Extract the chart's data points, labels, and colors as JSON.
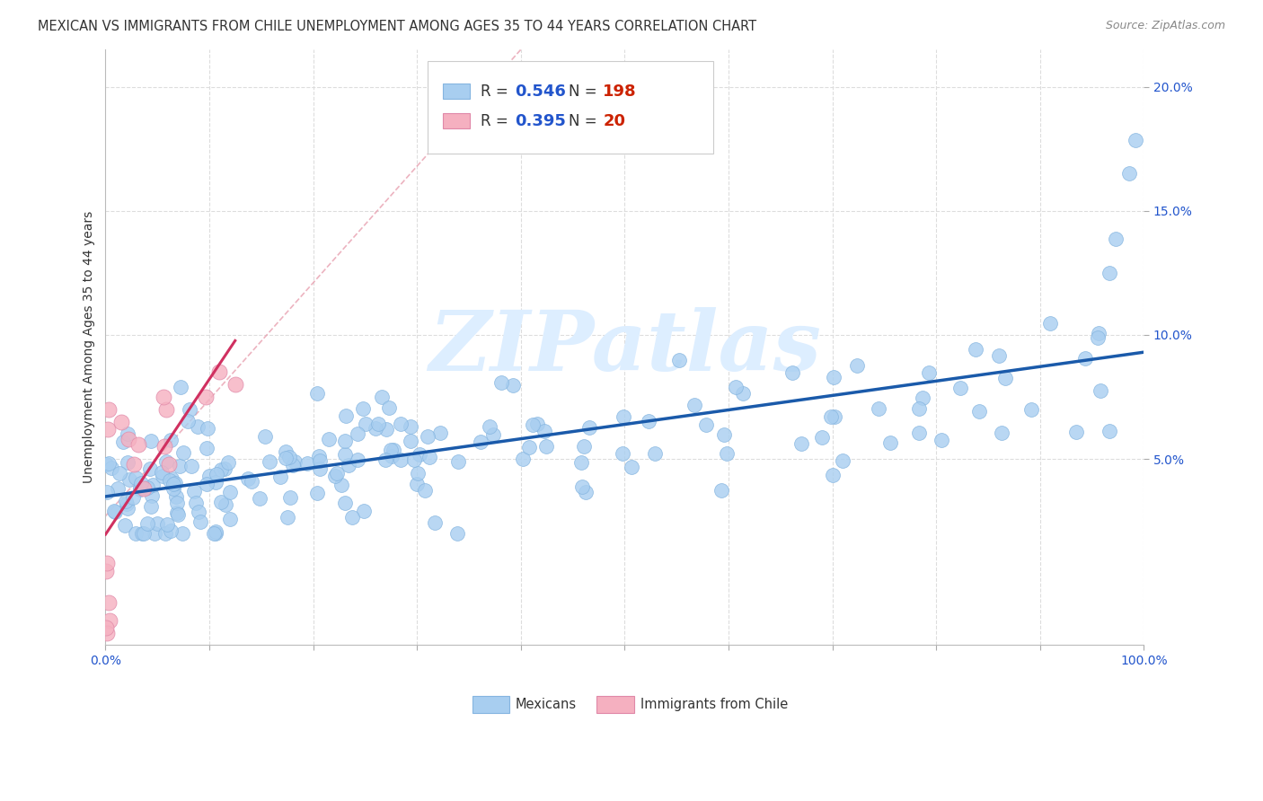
{
  "title": "MEXICAN VS IMMIGRANTS FROM CHILE UNEMPLOYMENT AMONG AGES 35 TO 44 YEARS CORRELATION CHART",
  "source": "Source: ZipAtlas.com",
  "ylabel": "Unemployment Among Ages 35 to 44 years",
  "mexican_scatter_color": "#a8cef0",
  "chile_scatter_color": "#f5b0c0",
  "mexican_line_color": "#1a5aaa",
  "chile_line_color": "#d03060",
  "identity_line_color": "#e8a0b0",
  "watermark_color": "#ddeeff",
  "background_color": "#ffffff",
  "grid_color": "#dddddd",
  "title_fontsize": 10.5,
  "axis_label_fontsize": 10,
  "tick_fontsize": 10,
  "xlim": [
    0,
    1.0
  ],
  "ylim": [
    -0.025,
    0.215
  ],
  "yticks": [
    0.05,
    0.1,
    0.15,
    0.2
  ],
  "ytick_labels": [
    "5.0%",
    "10.0%",
    "15.0%",
    "20.0%"
  ],
  "xticks": [
    0.0,
    0.1,
    0.2,
    0.3,
    0.4,
    0.5,
    0.6,
    0.7,
    0.8,
    0.9,
    1.0
  ],
  "xtick_labels": [
    "0.0%",
    "",
    "",
    "",
    "",
    "",
    "",
    "",
    "",
    "",
    "100.0%"
  ],
  "R_mex": 0.546,
  "N_mex": 198,
  "R_chile": 0.395,
  "N_chile": 20
}
